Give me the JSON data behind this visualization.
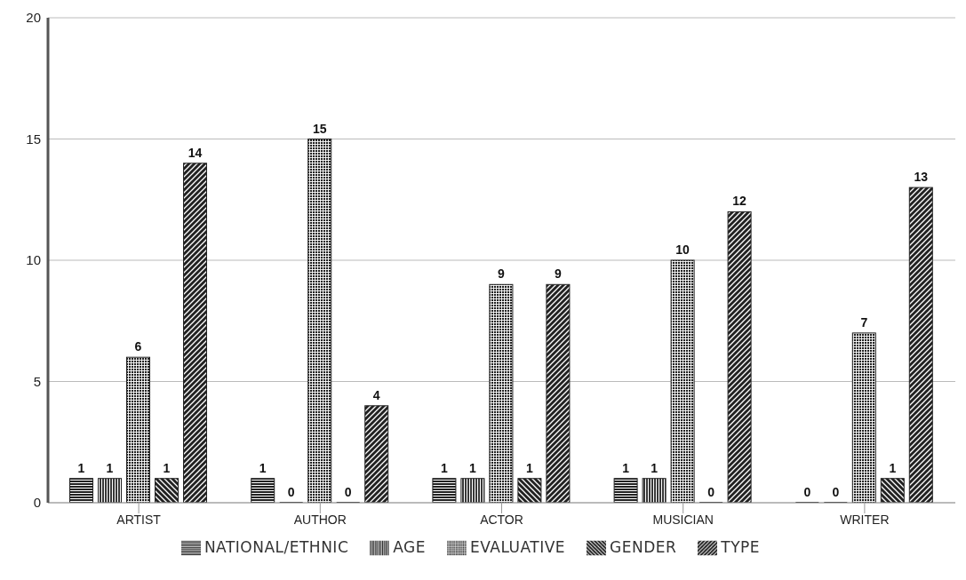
{
  "chart_data": {
    "type": "bar",
    "categories": [
      "ARTIST",
      "AUTHOR",
      "ACTOR",
      "MUSICIAN",
      "WRITER"
    ],
    "series": [
      {
        "name": "NATIONAL/ETHNIC",
        "color": "#222222",
        "values": [
          1,
          1,
          1,
          1,
          0
        ]
      },
      {
        "name": "AGE",
        "color": "#222222",
        "values": [
          1,
          0,
          1,
          1,
          0
        ]
      },
      {
        "name": "EVALUATIVE",
        "color": "#222222",
        "values": [
          6,
          15,
          9,
          10,
          7
        ]
      },
      {
        "name": "GENDER",
        "color": "#222222",
        "values": [
          1,
          0,
          1,
          0,
          1
        ]
      },
      {
        "name": "TYPE",
        "color": "#222222",
        "values": [
          14,
          4,
          9,
          12,
          13
        ]
      }
    ],
    "ylim": [
      0,
      20
    ],
    "yticks": [
      0,
      5,
      10,
      15,
      20
    ],
    "grid": "y",
    "legend": "bottom",
    "data_labels": true
  }
}
